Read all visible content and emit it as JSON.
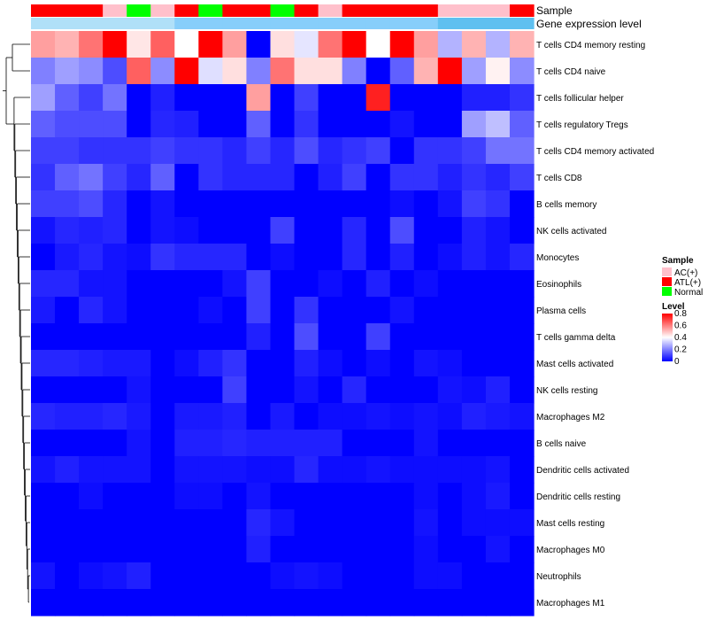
{
  "chart_data": {
    "type": "heatmap",
    "title": "",
    "annotations": {
      "sample_label": "Sample",
      "expr_label": "Gene expression level"
    },
    "columns": 21,
    "sample_groups": [
      "ATL(+)",
      "ATL(+)",
      "ATL(+)",
      "AC(+)",
      "Normal",
      "AC(+)",
      "ATL(+)",
      "Normal",
      "ATL(+)",
      "ATL(+)",
      "Normal",
      "ATL(+)",
      "AC(+)",
      "ATL(+)",
      "ATL(+)",
      "ATL(+)",
      "ATL(+)",
      "AC(+)",
      "AC(+)",
      "AC(+)",
      "ATL(+)"
    ],
    "rows": [
      "T cells CD4 memory resting",
      "T cells CD4 naive",
      "T cells follicular helper",
      "T cells regulatory  Tregs",
      "T cells CD4 memory activated",
      "T cells CD8",
      "B cells memory",
      "NK cells activated",
      "Monocytes",
      "Eosinophils",
      "Plasma cells",
      "T cells gamma delta",
      "Mast cells activated",
      "NK cells resting",
      "Macrophages M2",
      "B cells naive",
      "Dendritic cells activated",
      "Dendritic cells resting",
      "Mast cells resting",
      "Macrophages M0",
      "Neutrophils",
      "Macrophages M1"
    ],
    "values": [
      [
        0.55,
        0.52,
        0.62,
        0.8,
        0.44,
        0.65,
        0.4,
        0.8,
        0.55,
        0.0,
        0.45,
        0.36,
        0.62,
        0.8,
        0.4,
        0.8,
        0.55,
        0.28,
        0.52,
        0.28,
        0.52
      ],
      [
        0.2,
        0.25,
        0.22,
        0.12,
        0.65,
        0.22,
        0.8,
        0.35,
        0.45,
        0.2,
        0.62,
        0.45,
        0.45,
        0.2,
        0.0,
        0.15,
        0.52,
        0.8,
        0.25,
        0.42,
        0.22
      ],
      [
        0.25,
        0.15,
        0.1,
        0.18,
        0.0,
        0.05,
        0.0,
        0.0,
        0.0,
        0.55,
        0.0,
        0.1,
        0.0,
        0.0,
        0.75,
        0.0,
        0.0,
        0.0,
        0.05,
        0.05,
        0.08
      ],
      [
        0.15,
        0.12,
        0.12,
        0.12,
        0.0,
        0.06,
        0.05,
        0.0,
        0.0,
        0.15,
        0.0,
        0.08,
        0.0,
        0.0,
        0.0,
        0.03,
        0.0,
        0.0,
        0.25,
        0.3,
        0.15
      ],
      [
        0.1,
        0.1,
        0.08,
        0.08,
        0.08,
        0.1,
        0.08,
        0.08,
        0.06,
        0.1,
        0.06,
        0.12,
        0.06,
        0.08,
        0.1,
        0.0,
        0.08,
        0.08,
        0.1,
        0.18,
        0.18
      ],
      [
        0.08,
        0.15,
        0.18,
        0.1,
        0.06,
        0.15,
        0.0,
        0.08,
        0.06,
        0.06,
        0.06,
        0.0,
        0.05,
        0.1,
        0.0,
        0.08,
        0.08,
        0.05,
        0.08,
        0.06,
        0.1
      ],
      [
        0.1,
        0.1,
        0.12,
        0.06,
        0.0,
        0.03,
        0.0,
        0.0,
        0.0,
        0.0,
        0.0,
        0.0,
        0.0,
        0.0,
        0.0,
        0.02,
        0.0,
        0.03,
        0.1,
        0.08,
        0.0
      ],
      [
        0.03,
        0.06,
        0.05,
        0.06,
        0.0,
        0.03,
        0.02,
        0.0,
        0.0,
        0.0,
        0.1,
        0.0,
        0.0,
        0.06,
        0.0,
        0.12,
        0.0,
        0.0,
        0.05,
        0.03,
        0.0
      ],
      [
        0.0,
        0.04,
        0.06,
        0.03,
        0.02,
        0.08,
        0.06,
        0.06,
        0.06,
        0.0,
        0.02,
        0.0,
        0.0,
        0.06,
        0.0,
        0.05,
        0.0,
        0.02,
        0.05,
        0.03,
        0.06
      ],
      [
        0.06,
        0.06,
        0.03,
        0.03,
        0.0,
        0.0,
        0.0,
        0.0,
        0.03,
        0.1,
        0.0,
        0.0,
        0.02,
        0.0,
        0.05,
        0.0,
        0.02,
        0.0,
        0.0,
        0.0,
        0.0
      ],
      [
        0.04,
        0.0,
        0.06,
        0.03,
        0.0,
        0.0,
        0.0,
        0.02,
        0.0,
        0.1,
        0.0,
        0.08,
        0.0,
        0.0,
        0.0,
        0.03,
        0.0,
        0.0,
        0.0,
        0.0,
        0.0
      ],
      [
        0.0,
        0.0,
        0.0,
        0.0,
        0.0,
        0.0,
        0.0,
        0.0,
        0.0,
        0.05,
        0.0,
        0.12,
        0.0,
        0.0,
        0.1,
        0.0,
        0.0,
        0.0,
        0.0,
        0.0,
        0.0
      ],
      [
        0.06,
        0.06,
        0.05,
        0.04,
        0.04,
        0.0,
        0.02,
        0.05,
        0.08,
        0.0,
        0.0,
        0.05,
        0.02,
        0.0,
        0.02,
        0.0,
        0.03,
        0.02,
        0.0,
        0.0,
        0.0
      ],
      [
        0.0,
        0.0,
        0.0,
        0.0,
        0.03,
        0.0,
        0.0,
        0.0,
        0.1,
        0.0,
        0.0,
        0.03,
        0.0,
        0.06,
        0.0,
        0.0,
        0.0,
        0.03,
        0.02,
        0.05,
        0.0
      ],
      [
        0.06,
        0.05,
        0.05,
        0.06,
        0.04,
        0.0,
        0.04,
        0.04,
        0.05,
        0.0,
        0.04,
        0.0,
        0.02,
        0.02,
        0.03,
        0.02,
        0.03,
        0.02,
        0.05,
        0.04,
        0.03
      ],
      [
        0.0,
        0.0,
        0.0,
        0.0,
        0.03,
        0.0,
        0.05,
        0.05,
        0.06,
        0.05,
        0.05,
        0.05,
        0.05,
        0.0,
        0.0,
        0.0,
        0.03,
        0.0,
        0.0,
        0.0,
        0.0
      ],
      [
        0.03,
        0.05,
        0.03,
        0.03,
        0.03,
        0.0,
        0.03,
        0.03,
        0.03,
        0.02,
        0.02,
        0.06,
        0.02,
        0.02,
        0.03,
        0.02,
        0.02,
        0.02,
        0.02,
        0.03,
        0.0
      ],
      [
        0.0,
        0.0,
        0.02,
        0.0,
        0.0,
        0.0,
        0.02,
        0.02,
        0.0,
        0.03,
        0.0,
        0.0,
        0.0,
        0.0,
        0.0,
        0.0,
        0.02,
        0.0,
        0.02,
        0.04,
        0.0
      ],
      [
        0.0,
        0.0,
        0.0,
        0.0,
        0.0,
        0.0,
        0.0,
        0.0,
        0.0,
        0.06,
        0.03,
        0.0,
        0.0,
        0.0,
        0.0,
        0.0,
        0.03,
        0.0,
        0.02,
        0.02,
        0.02
      ],
      [
        0.0,
        0.0,
        0.0,
        0.0,
        0.0,
        0.0,
        0.0,
        0.0,
        0.0,
        0.05,
        0.0,
        0.0,
        0.0,
        0.0,
        0.0,
        0.0,
        0.02,
        0.0,
        0.0,
        0.03,
        0.0
      ],
      [
        0.03,
        0.0,
        0.02,
        0.03,
        0.05,
        0.0,
        0.0,
        0.0,
        0.0,
        0.0,
        0.02,
        0.03,
        0.02,
        0.0,
        0.0,
        0.0,
        0.02,
        0.02,
        0.0,
        0.0,
        0.0
      ],
      [
        0.0,
        0.0,
        0.0,
        0.0,
        0.0,
        0.0,
        0.0,
        0.0,
        0.0,
        0.0,
        0.0,
        0.0,
        0.0,
        0.0,
        0.0,
        0.0,
        0.0,
        0.0,
        0.0,
        0.0,
        0.0
      ]
    ],
    "legend": {
      "sample_title": "Sample",
      "groups": [
        {
          "label": "AC(+)",
          "color": "#ffc0cb"
        },
        {
          "label": "ATL(+)",
          "color": "#ff0000"
        },
        {
          "label": "Normal",
          "color": "#00ff00"
        }
      ],
      "level_title": "Level",
      "level_ticks": [
        "0.8",
        "0.6",
        "0.4",
        "0.2",
        "0"
      ],
      "level_tick_values": [
        0.8,
        0.6,
        0.4,
        0.2,
        0
      ]
    },
    "colorscale": {
      "low": "#0000ff",
      "mid": "#ffffff",
      "high": "#ff0000",
      "min": 0,
      "max": 0.8
    },
    "expr_bar_colors": [
      "#87cefa",
      "#b0e0f8",
      "#5fc0f0"
    ]
  }
}
